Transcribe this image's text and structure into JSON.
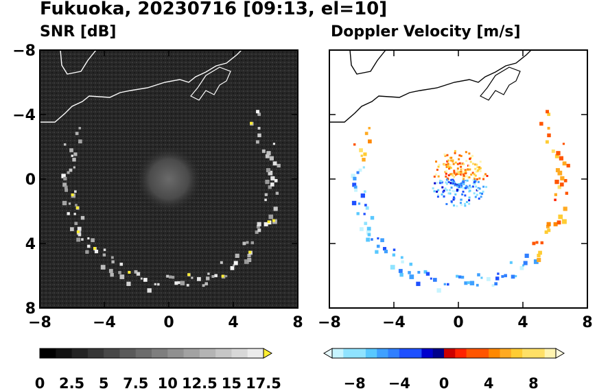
{
  "title": "Fukuoka, 20230716 [09:13, el=10]",
  "colors": {
    "background": "#ffffff",
    "snr_field": "#222222",
    "coastline_left": "#ffffff",
    "coastline_right": "#000000"
  },
  "chart_data": [
    {
      "type": "heatmap",
      "title": "SNR [dB]",
      "xlim": [
        -8,
        8
      ],
      "ylim": [
        -8,
        8
      ],
      "xticks": [
        "−8",
        "−4",
        "0",
        "4",
        "8"
      ],
      "yticks": [
        "8",
        "4",
        "0",
        "−4",
        "−8"
      ],
      "colorbar": {
        "min": 0,
        "max": 17.5,
        "extend": "max",
        "ticks": [
          "0",
          "2.5",
          "5",
          "7.5",
          "10",
          "12.5",
          "15",
          "17.5"
        ]
      },
      "echo_ring": {
        "center": [
          0,
          0
        ],
        "radius_km": 6.4,
        "snr_db": 12
      },
      "near_field": {
        "radius_km": 1.2,
        "snr_db": 4
      }
    },
    {
      "type": "heatmap",
      "title": "Doppler Velocity [m/s]",
      "xlim": [
        -8,
        8
      ],
      "ylim": [
        -8,
        8
      ],
      "xticks": [
        "−8",
        "−4",
        "0",
        "4",
        "8"
      ],
      "yticks": [
        "8",
        "4",
        "0",
        "−4",
        "−8"
      ],
      "colorbar": {
        "min": -10,
        "max": 10,
        "extend": "both",
        "ticks": [
          "−8",
          "−4",
          "0",
          "4",
          "8"
        ]
      },
      "sectors": [
        {
          "side": "south/west",
          "velocity_ms": -6
        },
        {
          "side": "north/east",
          "velocity_ms": 6
        }
      ]
    }
  ]
}
